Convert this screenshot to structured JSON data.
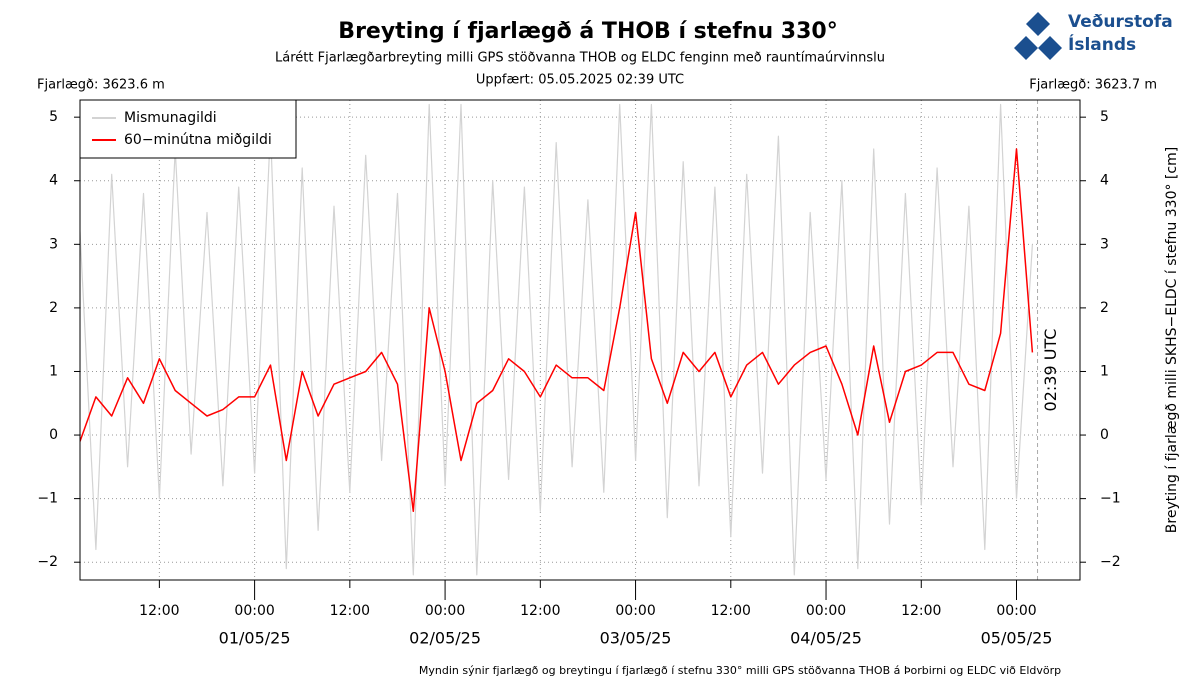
{
  "chart_data": {
    "type": "line",
    "title": "Breyting í fjarlægð á THOB í stefnu 330°",
    "subtitle": "Lárétt Fjarlægðarbreyting milli GPS stöðvanna THOB og ELDC fenginn með rauntímaúrvinnslu",
    "updated": "Uppfært: 05.05.2025 02:39 UTC",
    "left_note": "Fjarlægð: 3623.6 m",
    "right_note": "Fjarlægð: 3623.7 m",
    "y2_label": "Breyting í fjarlægð milli SKHS−ELDC í stefnu 330° [cm]",
    "footer": "Myndin sýnir fjarlægð og breytingu í fjarlægð í stefnu 330° milli GPS stöðvanna THOB á Þorbirni  og ELDC við Eldvörp",
    "logo": [
      "Veðurstofa",
      "Íslands"
    ],
    "annotation": {
      "x": "05/05/25 02:39",
      "text": "02:39 UTC"
    },
    "x": [
      "30/04/25 02:00",
      "30/04/25 04:00",
      "30/04/25 06:00",
      "30/04/25 08:00",
      "30/04/25 10:00",
      "30/04/25 12:00",
      "30/04/25 14:00",
      "30/04/25 16:00",
      "30/04/25 18:00",
      "30/04/25 20:00",
      "30/04/25 22:00",
      "01/05/25 00:00",
      "01/05/25 02:00",
      "01/05/25 04:00",
      "01/05/25 06:00",
      "01/05/25 08:00",
      "01/05/25 10:00",
      "01/05/25 12:00",
      "01/05/25 14:00",
      "01/05/25 16:00",
      "01/05/25 18:00",
      "01/05/25 20:00",
      "01/05/25 22:00",
      "02/05/25 00:00",
      "02/05/25 02:00",
      "02/05/25 04:00",
      "02/05/25 06:00",
      "02/05/25 08:00",
      "02/05/25 10:00",
      "02/05/25 12:00",
      "02/05/25 14:00",
      "02/05/25 16:00",
      "02/05/25 18:00",
      "02/05/25 20:00",
      "02/05/25 22:00",
      "03/05/25 00:00",
      "03/05/25 02:00",
      "03/05/25 04:00",
      "03/05/25 06:00",
      "03/05/25 08:00",
      "03/05/25 10:00",
      "03/05/25 12:00",
      "03/05/25 14:00",
      "03/05/25 16:00",
      "03/05/25 18:00",
      "03/05/25 20:00",
      "03/05/25 22:00",
      "04/05/25 00:00",
      "04/05/25 02:00",
      "04/05/25 04:00",
      "04/05/25 06:00",
      "04/05/25 08:00",
      "04/05/25 10:00",
      "04/05/25 12:00",
      "04/05/25 14:00",
      "04/05/25 16:00",
      "04/05/25 18:00",
      "04/05/25 20:00",
      "04/05/25 22:00",
      "05/05/25 00:00",
      "05/05/25 02:00"
    ],
    "series": [
      {
        "name": "Mismunagildi",
        "color": "#d3d3d3",
        "values": [
          3.2,
          -1.8,
          4.1,
          -0.5,
          3.8,
          -1.0,
          4.5,
          -0.3,
          3.5,
          -0.8,
          3.9,
          -0.6,
          4.8,
          -2.1,
          4.2,
          -1.5,
          3.6,
          -0.9,
          4.4,
          -0.4,
          3.8,
          -2.2,
          5.2,
          -0.8,
          5.2,
          -2.2,
          4.0,
          -0.7,
          3.9,
          -1.2,
          4.6,
          -0.5,
          3.7,
          -0.9,
          5.2,
          -0.4,
          5.2,
          -1.3,
          4.3,
          -0.8,
          3.9,
          -1.6,
          4.1,
          -0.6,
          4.7,
          -2.2,
          3.5,
          -0.7,
          4.0,
          -2.1,
          4.5,
          -1.4,
          3.8,
          -1.1,
          4.2,
          -0.5,
          3.6,
          -1.8,
          5.2,
          -1.0,
          3.0
        ]
      },
      {
        "name": "60−minútna miðgildi",
        "color": "#ff0000",
        "values": [
          -0.1,
          0.6,
          0.3,
          0.9,
          0.5,
          1.2,
          0.7,
          0.5,
          0.3,
          0.4,
          0.6,
          0.6,
          1.1,
          -0.4,
          1.0,
          0.3,
          0.8,
          0.9,
          1.0,
          1.3,
          0.8,
          -1.2,
          2.0,
          1.0,
          -0.4,
          0.5,
          0.7,
          1.2,
          1.0,
          0.6,
          1.1,
          0.9,
          0.9,
          0.7,
          2.0,
          3.5,
          1.2,
          0.5,
          1.3,
          1.0,
          1.3,
          0.6,
          1.1,
          1.3,
          0.8,
          1.1,
          1.3,
          1.4,
          0.8,
          0.0,
          1.4,
          0.2,
          1.0,
          1.1,
          1.3,
          1.3,
          0.8,
          0.7,
          1.6,
          4.5,
          1.3
        ]
      }
    ],
    "xlim": [
      "30/04/25 02:00",
      "05/05/25 08:00"
    ],
    "xticks": [
      {
        "value": "30/04/25 12:00",
        "label": "12:00"
      },
      {
        "value": "01/05/25 00:00",
        "label": "00:00"
      },
      {
        "value": "01/05/25 12:00",
        "label": "12:00"
      },
      {
        "value": "02/05/25 00:00",
        "label": "00:00"
      },
      {
        "value": "02/05/25 12:00",
        "label": "12:00"
      },
      {
        "value": "03/05/25 00:00",
        "label": "00:00"
      },
      {
        "value": "03/05/25 12:00",
        "label": "12:00"
      },
      {
        "value": "04/05/25 00:00",
        "label": "00:00"
      },
      {
        "value": "04/05/25 12:00",
        "label": "12:00"
      },
      {
        "value": "05/05/25 00:00",
        "label": "00:00"
      }
    ],
    "date_labels": [
      {
        "value": "01/05/25 00:00",
        "label": "01/05/25"
      },
      {
        "value": "02/05/25 00:00",
        "label": "02/05/25"
      },
      {
        "value": "03/05/25 00:00",
        "label": "03/05/25"
      },
      {
        "value": "04/05/25 00:00",
        "label": "04/05/25"
      },
      {
        "value": "05/05/25 00:00",
        "label": "05/05/25"
      }
    ],
    "ylim": [
      -2.28,
      5.27
    ],
    "yticks": [
      {
        "value": -2,
        "label": "−2"
      },
      {
        "value": -1,
        "label": "−1"
      },
      0,
      1,
      2,
      3,
      4,
      5
    ],
    "y2lim": [
      -2.28,
      5.27
    ],
    "y2ticks": [
      {
        "value": -2,
        "label": "−2"
      },
      {
        "value": -1,
        "label": "−1"
      },
      0,
      1,
      2,
      3,
      4,
      5
    ],
    "grid": true,
    "legend": "upper left"
  }
}
